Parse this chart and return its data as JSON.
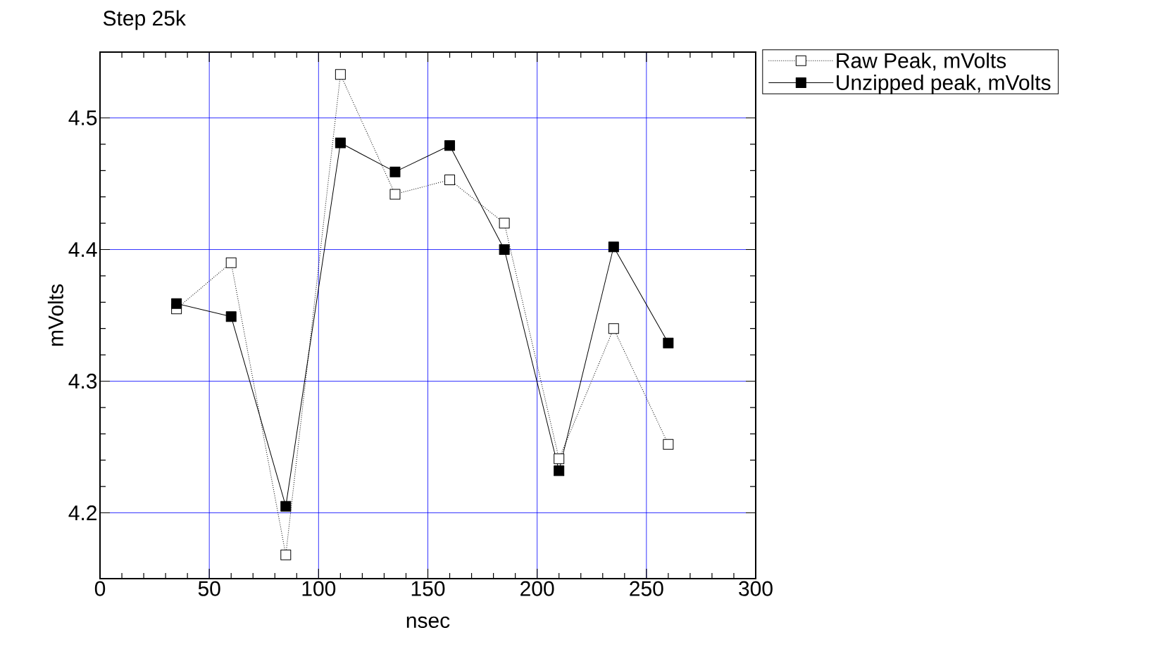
{
  "chart_data": {
    "type": "line",
    "title": "Step 25k",
    "xlabel": "nsec",
    "ylabel": "mVolts",
    "xlim": [
      0,
      300
    ],
    "xticks": [
      0,
      50,
      100,
      150,
      200,
      250,
      300
    ],
    "ylim": [
      4.15,
      4.55
    ],
    "yticks": [
      {
        "value": 4.2,
        "label": "4.2"
      },
      {
        "value": 4.3,
        "label": "4.3"
      },
      {
        "value": 4.4,
        "label": "4.4"
      },
      {
        "value": 4.5,
        "label": "4.5"
      }
    ],
    "grid": true,
    "legend": "top right",
    "marker": "square",
    "series": [
      {
        "name": "Raw Peak, mVolts",
        "color": "#000000",
        "line_style": "dotted",
        "x": [
          35,
          60,
          85,
          110,
          135,
          160,
          185,
          210,
          235,
          260
        ],
        "values": [
          4.355,
          4.39,
          4.168,
          4.533,
          4.442,
          4.453,
          4.42,
          4.241,
          4.34,
          4.252
        ]
      },
      {
        "name": "Unzipped peak, mVolts",
        "color": "#000000",
        "line_style": "solid",
        "x": [
          35,
          60,
          85,
          110,
          135,
          160,
          185,
          210,
          235,
          260
        ],
        "values": [
          4.359,
          4.349,
          4.205,
          4.481,
          4.459,
          4.479,
          4.4,
          4.232,
          4.402,
          4.329
        ]
      }
    ]
  }
}
